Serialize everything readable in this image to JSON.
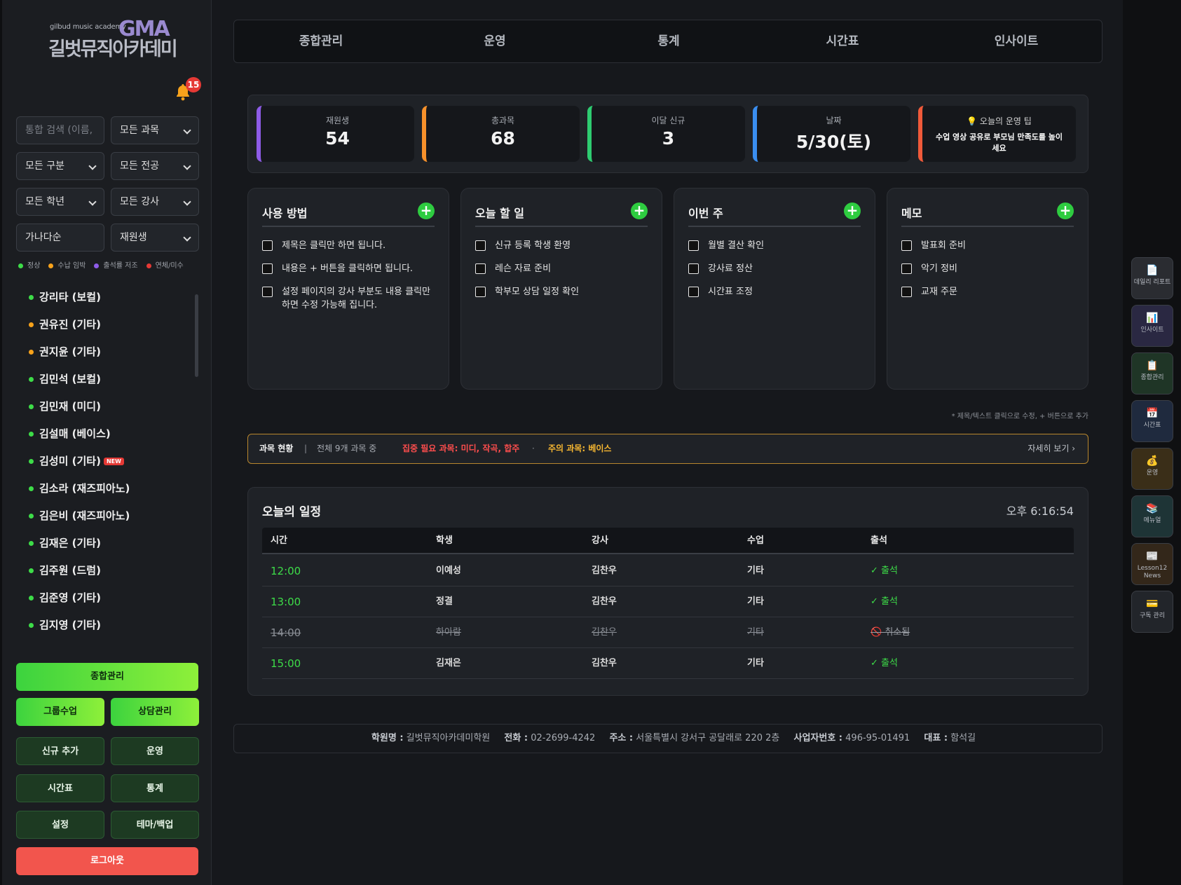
{
  "sidebar": {
    "logo_small": "gilbud music academy",
    "logo_big": "길벗뮤직아카데미",
    "logo_mark": "GMA",
    "notification_count": "15",
    "search_placeholder": "통합 검색 (이름,",
    "filters": {
      "subject": "모든 과목",
      "category": "모든 구분",
      "major": "모든 전공",
      "grade": "모든 학년",
      "teacher": "모든 강사",
      "sort": "가나다순",
      "status": "재원생"
    },
    "legend": [
      {
        "label": "정상",
        "color": "#3ddc48"
      },
      {
        "label": "수납 임박",
        "color": "#f7a21b"
      },
      {
        "label": "출석률 저조",
        "color": "#8e5ce8"
      },
      {
        "label": "연체/미수",
        "color": "#e53935"
      }
    ],
    "students": [
      {
        "name": "강리타 (보컬)",
        "color": "#3ddc48",
        "new": false
      },
      {
        "name": "권유진 (기타)",
        "color": "#f7a21b",
        "new": false
      },
      {
        "name": "권지윤 (기타)",
        "color": "#f7a21b",
        "new": false
      },
      {
        "name": "김민석 (보컬)",
        "color": "#3ddc48",
        "new": false
      },
      {
        "name": "김민재 (미디)",
        "color": "#3ddc48",
        "new": false
      },
      {
        "name": "김설매 (베이스)",
        "color": "#3ddc48",
        "new": false
      },
      {
        "name": "김성미 (기타)",
        "color": "#3ddc48",
        "new": true
      },
      {
        "name": "김소라 (재즈피아노)",
        "color": "#3ddc48",
        "new": false
      },
      {
        "name": "김은비 (재즈피아노)",
        "color": "#3ddc48",
        "new": false
      },
      {
        "name": "김재은 (기타)",
        "color": "#3ddc48",
        "new": false
      },
      {
        "name": "김주원 (드럼)",
        "color": "#3ddc48",
        "new": false
      },
      {
        "name": "김준영 (기타)",
        "color": "#3ddc48",
        "new": false
      },
      {
        "name": "김지영 (기타)",
        "color": "#3ddc48",
        "new": false
      }
    ],
    "new_badge": "NEW",
    "buttons": {
      "overview": "종합관리",
      "group": "그룹수업",
      "consult": "상담관리",
      "add_new": "신규 추가",
      "operation": "운영",
      "timetable": "시간표",
      "stats": "통계",
      "settings": "설정",
      "theme_backup": "테마/백업",
      "logout": "로그아웃"
    }
  },
  "topnav": [
    "종합관리",
    "운영",
    "통계",
    "시간표",
    "인사이트"
  ],
  "stats": [
    {
      "label": "재원생",
      "value": "54",
      "color": "#8e5ce8"
    },
    {
      "label": "총과목",
      "value": "68",
      "color": "#f7912b"
    },
    {
      "label": "이달 신규",
      "value": "3",
      "color": "#2ecc71"
    },
    {
      "label": "날짜",
      "value": "5/30(토)",
      "color": "#3a8ef0"
    }
  ],
  "tip": {
    "title": "💡 오늘의 운영 팁",
    "body": "수업 영상 공유로 부모님 만족도를 높이세요",
    "color": "#f05a3a"
  },
  "cards": [
    {
      "title": "사용 방법",
      "items": [
        "제목은 클릭만 하면 됩니다.",
        "내용은 + 버튼을 클릭하면 됩니다.",
        "설정 페이지의 강사 부분도 내용 클릭만 하면 수정 가능해 집니다."
      ]
    },
    {
      "title": "오늘 할 일",
      "items": [
        "신규 등록 학생 환영",
        "레슨 자료 준비",
        "학부모 상담 일정 확인"
      ]
    },
    {
      "title": "이번 주",
      "items": [
        "월별 결산 확인",
        "강사료 정산",
        "시간표 조정"
      ]
    },
    {
      "title": "메모",
      "items": [
        "발표회 준비",
        "악기 정비",
        "교재 주문"
      ]
    }
  ],
  "hint": "* 제목/텍스트 클릭으로 수정, + 버튼으로 추가",
  "subject_status": {
    "label": "과목 현황",
    "divider": "|",
    "total": "전체 9개 과목 중",
    "focus": "집중 필요 과목: 미디, 작곡, 합주",
    "sep": "·",
    "caution": "주의 과목: 베이스",
    "more": "자세히 보기 ›"
  },
  "schedule": {
    "title": "오늘의 일정",
    "clock": "오후 6:16:54",
    "headers": [
      "시간",
      "학생",
      "강사",
      "수업",
      "출석"
    ],
    "rows": [
      {
        "time": "12:00",
        "student": "이예성",
        "teacher": "김찬우",
        "lesson": "기타",
        "attendance": "✓ 출석",
        "cancelled": false
      },
      {
        "time": "13:00",
        "student": "정결",
        "teacher": "김찬우",
        "lesson": "기타",
        "attendance": "✓ 출석",
        "cancelled": false
      },
      {
        "time": "14:00",
        "student": "하아람",
        "teacher": "김찬우",
        "lesson": "기타",
        "attendance": "🚫 취소됨",
        "cancelled": true
      },
      {
        "time": "15:00",
        "student": "김재은",
        "teacher": "김찬우",
        "lesson": "기타",
        "attendance": "✓ 출석",
        "cancelled": false
      }
    ]
  },
  "footer": {
    "name_label": "학원명 :",
    "name": "길벗뮤직아카데미학원",
    "phone_label": "전화 :",
    "phone": "02-2699-4242",
    "addr_label": "주소 :",
    "addr": "서울특별시 강서구 공달래로 220 2층",
    "biz_label": "사업자번호 :",
    "biz": "496-95-01491",
    "ceo_label": "대표 :",
    "ceo": "함석길"
  },
  "rail": [
    {
      "label": "데일리 리포트",
      "icon": "📄",
      "bg": "#2a2c31",
      "icon_name": "report-icon"
    },
    {
      "label": "인사이트",
      "icon": "📊",
      "bg": "#2a2842",
      "icon_name": "chart-icon"
    },
    {
      "label": "종합관리",
      "icon": "📋",
      "bg": "#1f3526",
      "icon_name": "clipboard-icon"
    },
    {
      "label": "시간표",
      "icon": "📅",
      "bg": "#1f2a3e",
      "icon_name": "calendar-icon"
    },
    {
      "label": "운영",
      "icon": "💰",
      "bg": "#3a2e18",
      "icon_name": "money-bag-icon"
    },
    {
      "label": "메뉴얼",
      "icon": "📚",
      "bg": "#1e3436",
      "icon_name": "books-icon"
    },
    {
      "label": "Lesson12 News",
      "icon": "📰",
      "bg": "#33271a",
      "icon_name": "newspaper-icon"
    },
    {
      "label": "구독 관리",
      "icon": "💳",
      "bg": "#22252a",
      "icon_name": "card-icon"
    }
  ]
}
